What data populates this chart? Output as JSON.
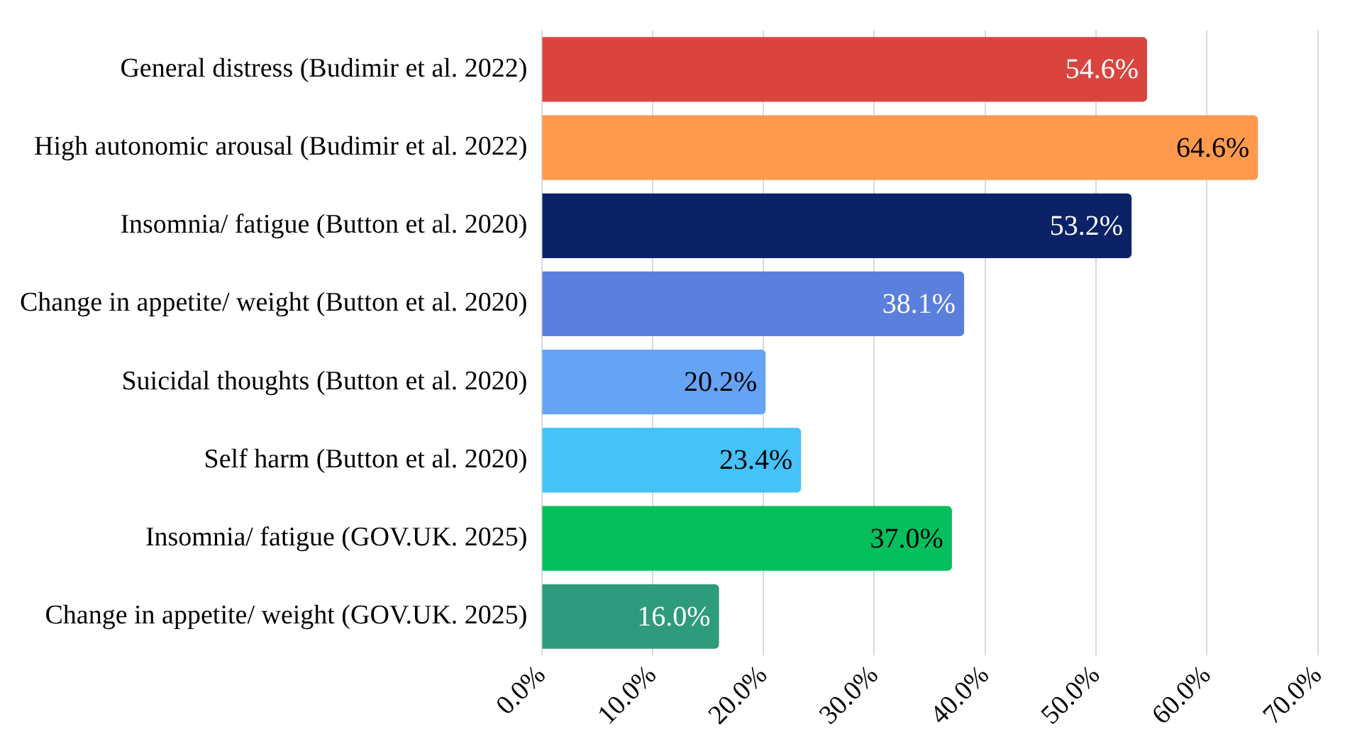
{
  "chart_data": {
    "type": "bar",
    "orientation": "horizontal",
    "categories": [
      "General distress (Budimir et al. 2022)",
      "High autonomic arousal (Budimir et al. 2022)",
      "Insomnia/ fatigue (Button et al. 2020)",
      "Change in appetite/ weight (Button et al. 2020)",
      "Suicidal thoughts (Button et al. 2020)",
      "Self harm (Button et al. 2020)",
      "Insomnia/ fatigue (GOV.UK. 2025)",
      "Change in appetite/ weight (GOV.UK. 2025)"
    ],
    "values": [
      54.6,
      64.6,
      53.2,
      38.1,
      20.2,
      23.4,
      37.0,
      16.0
    ],
    "value_labels": [
      "54.6%",
      "64.6%",
      "53.2%",
      "38.1%",
      "20.2%",
      "23.4%",
      "37.0%",
      "16.0%"
    ],
    "colors": [
      "#d9443f",
      "#ff994d",
      "#0b2266",
      "#5b7fdc",
      "#65a3f5",
      "#45c2f7",
      "#04bf5c",
      "#2e9b7c"
    ],
    "xlim": [
      0,
      70
    ],
    "xticks": [
      {
        "value": 0,
        "label": "0.0%"
      },
      {
        "value": 10,
        "label": "10.0%"
      },
      {
        "value": 20,
        "label": "20.0%"
      },
      {
        "value": 30,
        "label": "30.0%"
      },
      {
        "value": 40,
        "label": "40.0%"
      },
      {
        "value": 50,
        "label": "50.0%"
      },
      {
        "value": 60,
        "label": "60.0%"
      },
      {
        "value": 70,
        "label": "70.0%"
      }
    ],
    "grid": "x"
  }
}
